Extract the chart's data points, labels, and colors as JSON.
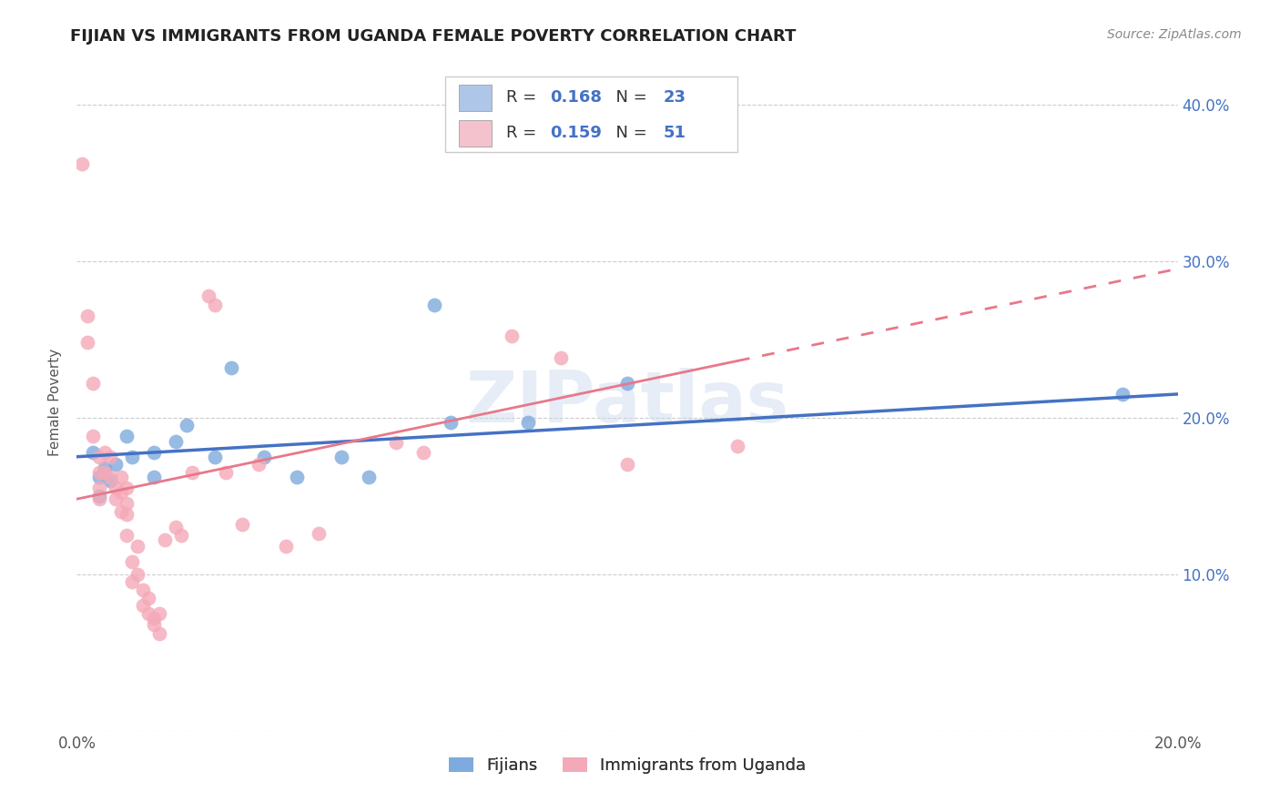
{
  "title": "FIJIAN VS IMMIGRANTS FROM UGANDA FEMALE POVERTY CORRELATION CHART",
  "source": "Source: ZipAtlas.com",
  "ylabel": "Female Poverty",
  "xlim": [
    0.0,
    0.2
  ],
  "ylim": [
    0.0,
    0.42
  ],
  "yticks": [
    0.0,
    0.1,
    0.2,
    0.3,
    0.4
  ],
  "ytick_labels_right": [
    "",
    "10.0%",
    "20.0%",
    "30.0%",
    "40.0%"
  ],
  "xtick_pos": [
    0.0,
    0.05,
    0.1,
    0.15,
    0.2
  ],
  "xtick_labels": [
    "0.0%",
    "",
    "",
    "",
    "20.0%"
  ],
  "fijian_color": "#7faadd",
  "uganda_color": "#f4a9b8",
  "fijian_line_color": "#4472c4",
  "uganda_line_color": "#e8788a",
  "legend_fijian_color": "#aec6e8",
  "legend_uganda_color": "#f4c2cc",
  "R_fijian": "0.168",
  "N_fijian": "23",
  "R_uganda": "0.159",
  "N_uganda": "51",
  "watermark": "ZIPatlas",
  "fijian_line": {
    "x0": 0.0,
    "y0": 0.175,
    "x1": 0.2,
    "y1": 0.215
  },
  "uganda_line": {
    "x0": 0.0,
    "y0": 0.148,
    "x1": 0.2,
    "y1": 0.295
  },
  "fijian_points": [
    [
      0.003,
      0.178
    ],
    [
      0.004,
      0.162
    ],
    [
      0.004,
      0.15
    ],
    [
      0.005,
      0.168
    ],
    [
      0.006,
      0.16
    ],
    [
      0.007,
      0.17
    ],
    [
      0.009,
      0.188
    ],
    [
      0.01,
      0.175
    ],
    [
      0.014,
      0.178
    ],
    [
      0.014,
      0.162
    ],
    [
      0.018,
      0.185
    ],
    [
      0.02,
      0.195
    ],
    [
      0.025,
      0.175
    ],
    [
      0.028,
      0.232
    ],
    [
      0.034,
      0.175
    ],
    [
      0.04,
      0.162
    ],
    [
      0.048,
      0.175
    ],
    [
      0.053,
      0.162
    ],
    [
      0.068,
      0.197
    ],
    [
      0.082,
      0.197
    ],
    [
      0.1,
      0.222
    ],
    [
      0.065,
      0.272
    ],
    [
      0.19,
      0.215
    ]
  ],
  "uganda_points": [
    [
      0.001,
      0.362
    ],
    [
      0.002,
      0.265
    ],
    [
      0.002,
      0.248
    ],
    [
      0.003,
      0.222
    ],
    [
      0.003,
      0.188
    ],
    [
      0.004,
      0.175
    ],
    [
      0.004,
      0.165
    ],
    [
      0.004,
      0.155
    ],
    [
      0.004,
      0.148
    ],
    [
      0.005,
      0.178
    ],
    [
      0.005,
      0.165
    ],
    [
      0.006,
      0.175
    ],
    [
      0.006,
      0.162
    ],
    [
      0.007,
      0.155
    ],
    [
      0.007,
      0.148
    ],
    [
      0.008,
      0.162
    ],
    [
      0.008,
      0.152
    ],
    [
      0.008,
      0.14
    ],
    [
      0.009,
      0.155
    ],
    [
      0.009,
      0.145
    ],
    [
      0.009,
      0.138
    ],
    [
      0.009,
      0.125
    ],
    [
      0.01,
      0.108
    ],
    [
      0.01,
      0.095
    ],
    [
      0.011,
      0.118
    ],
    [
      0.011,
      0.1
    ],
    [
      0.012,
      0.09
    ],
    [
      0.012,
      0.08
    ],
    [
      0.013,
      0.085
    ],
    [
      0.013,
      0.075
    ],
    [
      0.014,
      0.068
    ],
    [
      0.014,
      0.072
    ],
    [
      0.015,
      0.062
    ],
    [
      0.015,
      0.075
    ],
    [
      0.016,
      0.122
    ],
    [
      0.018,
      0.13
    ],
    [
      0.019,
      0.125
    ],
    [
      0.021,
      0.165
    ],
    [
      0.024,
      0.278
    ],
    [
      0.025,
      0.272
    ],
    [
      0.027,
      0.165
    ],
    [
      0.03,
      0.132
    ],
    [
      0.033,
      0.17
    ],
    [
      0.038,
      0.118
    ],
    [
      0.044,
      0.126
    ],
    [
      0.058,
      0.184
    ],
    [
      0.063,
      0.178
    ],
    [
      0.079,
      0.252
    ],
    [
      0.088,
      0.238
    ],
    [
      0.12,
      0.182
    ],
    [
      0.1,
      0.17
    ]
  ]
}
